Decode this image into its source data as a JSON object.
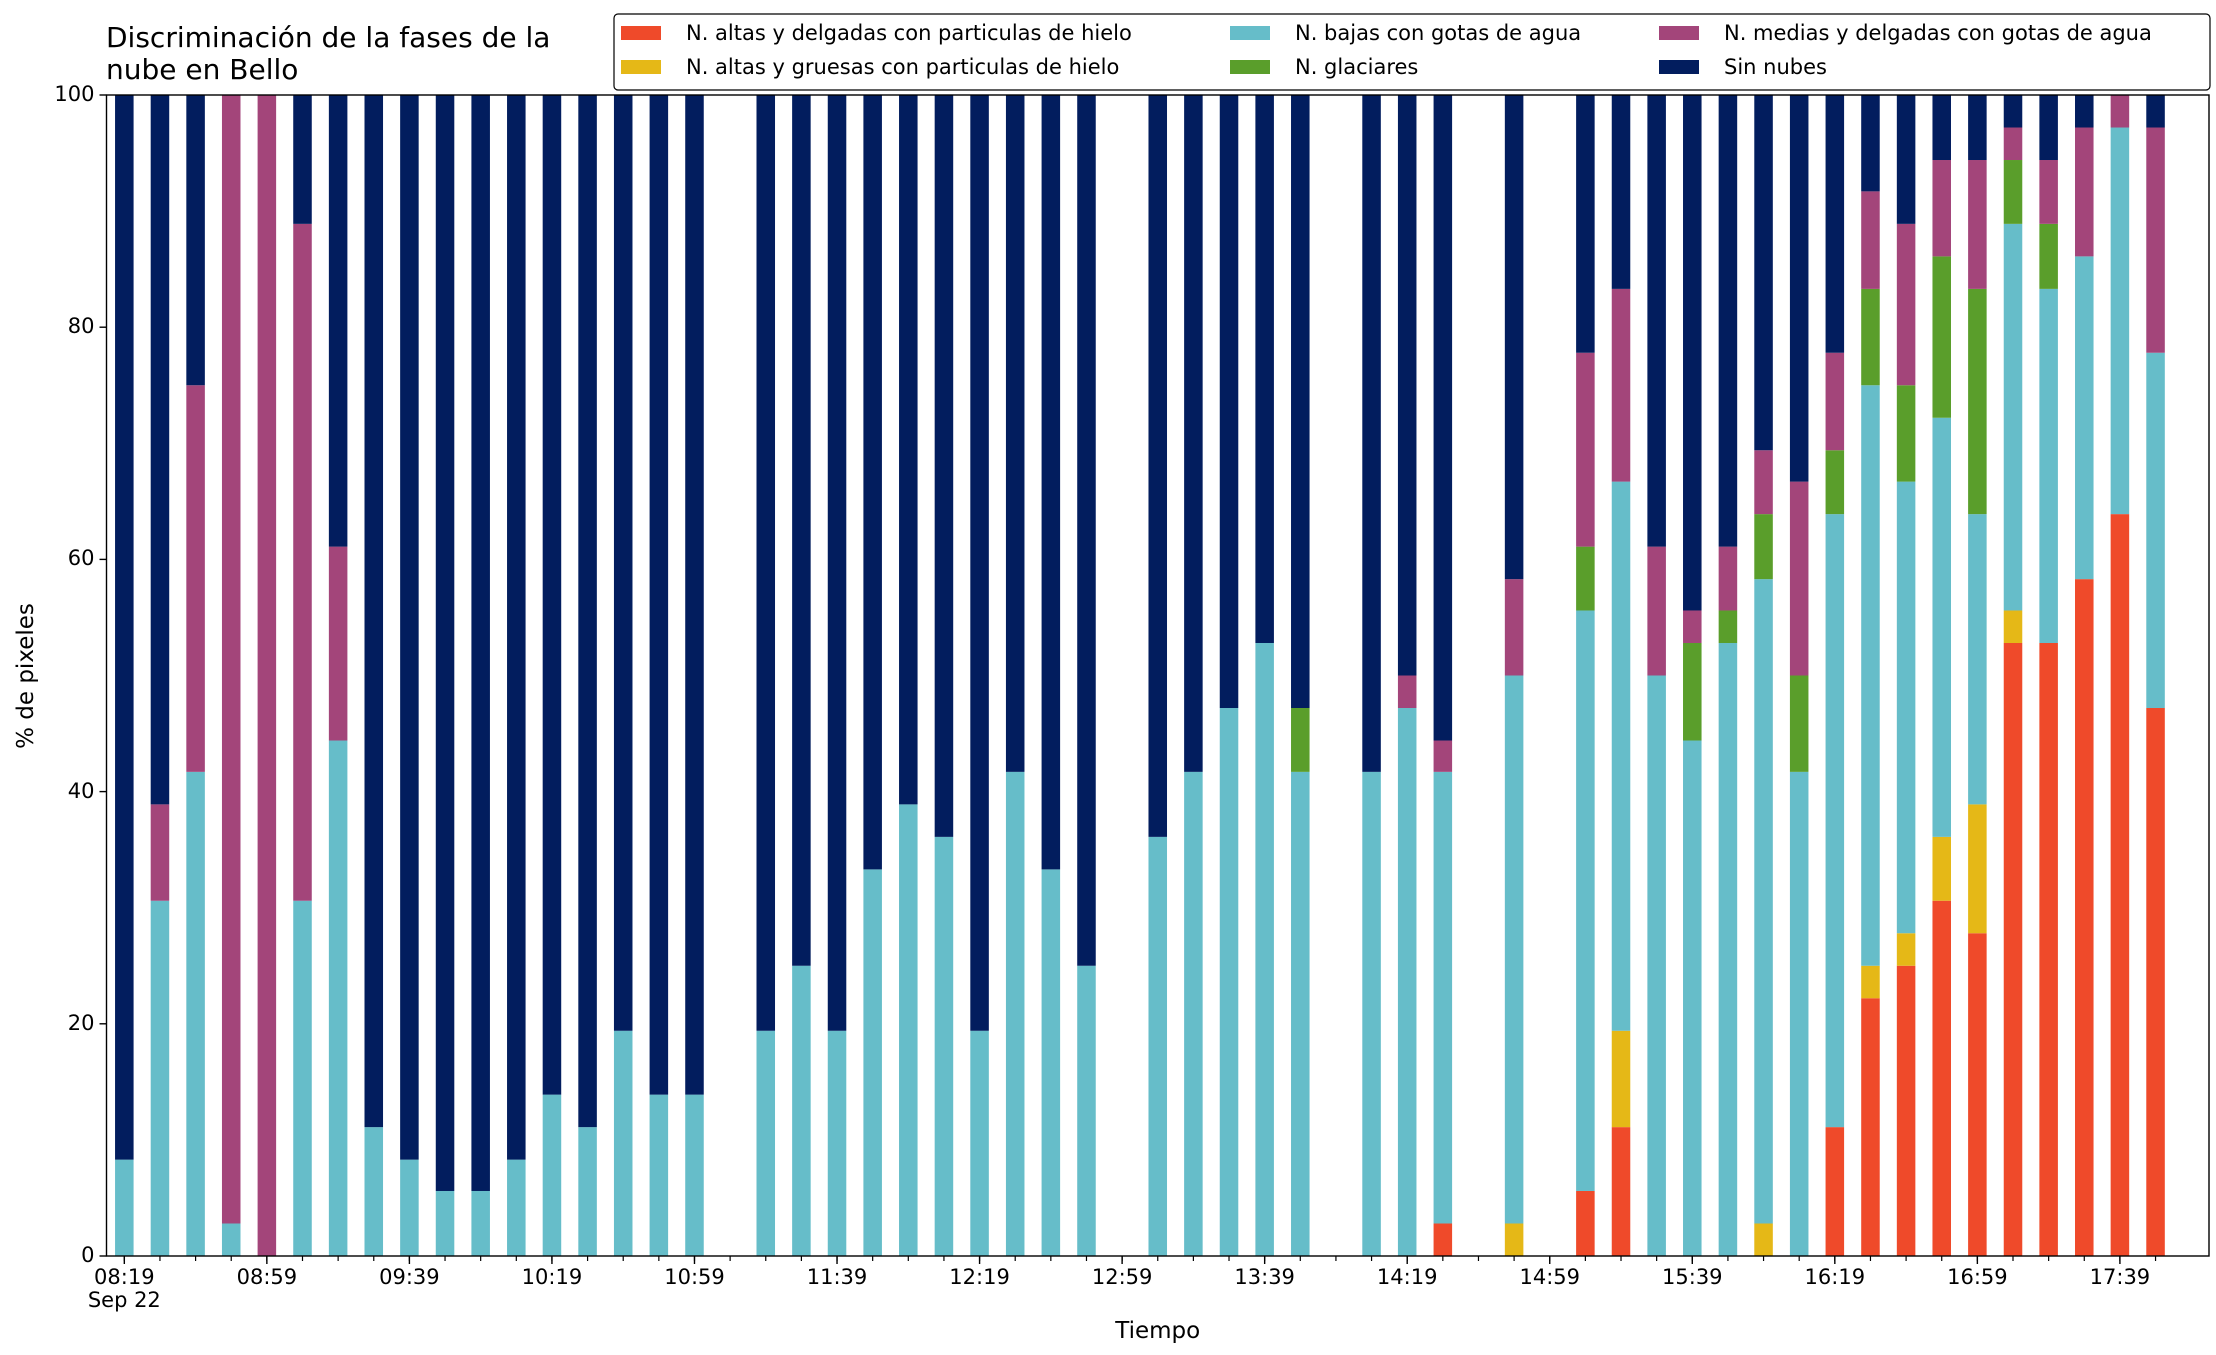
{
  "chart_data": {
    "type": "stacked_bar",
    "title": "Discriminación de la fases de la\nnube en Bello",
    "xlabel": "Tiempo",
    "ylabel": "% de pixeles",
    "x": [
      "08:19",
      "08:29",
      "08:39",
      "08:49",
      "08:59",
      "09:09",
      "09:19",
      "09:29",
      "09:39",
      "09:49",
      "09:59",
      "10:09",
      "10:19",
      "10:29",
      "10:39",
      "10:49",
      "10:59",
      "11:09",
      "11:19",
      "11:29",
      "11:39",
      "11:49",
      "11:59",
      "12:09",
      "12:19",
      "12:29",
      "12:39",
      "12:49",
      "12:59",
      "13:09",
      "13:19",
      "13:29",
      "13:39",
      "13:49",
      "13:59",
      "14:09",
      "14:19",
      "14:29",
      "14:39",
      "14:49",
      "14:59",
      "15:09",
      "15:19",
      "15:29",
      "15:39",
      "15:49",
      "15:59",
      "16:09",
      "16:19",
      "16:29",
      "16:39",
      "16:49",
      "16:59",
      "17:09",
      "17:19",
      "17:29",
      "17:39",
      "17:49"
    ],
    "xlim": [
      "08:14",
      "18:04"
    ],
    "xticks": [
      {
        "value": "08:19",
        "label": "08:19\nSep 22"
      },
      "08:59",
      "09:39",
      "10:19",
      "10:59",
      "11:39",
      "12:19",
      "12:59",
      "13:39",
      "14:19",
      "14:59",
      "15:39",
      "16:19",
      "16:59",
      "17:39"
    ],
    "ylim": [
      0,
      100
    ],
    "yticks": [
      0,
      20,
      40,
      60,
      80,
      100
    ],
    "legend": "top right",
    "series": [
      {
        "name": "N. altas y delgadas con particulas de hielo",
        "color": "#ef4a2a",
        "values": [
          0,
          0,
          0,
          0,
          0,
          0,
          0,
          0,
          0,
          0,
          0,
          0,
          0,
          0,
          0,
          0,
          0,
          null,
          0,
          0,
          0,
          0,
          0,
          0,
          0,
          0,
          0,
          0,
          null,
          0,
          0,
          0,
          0,
          0,
          null,
          0,
          0,
          2.8,
          null,
          0,
          null,
          5.6,
          11.1,
          0,
          0,
          0,
          0,
          0,
          11.1,
          22.2,
          25,
          30.6,
          27.8,
          52.8,
          52.8,
          58.3,
          63.9,
          47.2
        ]
      },
      {
        "name": "N. altas y gruesas con particulas de hielo",
        "color": "#e5b817",
        "values": [
          0,
          0,
          0,
          0,
          0,
          0,
          0,
          0,
          0,
          0,
          0,
          0,
          0,
          0,
          0,
          0,
          0,
          null,
          0,
          0,
          0,
          0,
          0,
          0,
          0,
          0,
          0,
          0,
          null,
          0,
          0,
          0,
          0,
          0,
          null,
          0,
          0,
          0,
          null,
          2.8,
          null,
          0,
          8.3,
          0,
          0,
          0,
          2.8,
          0,
          0,
          2.8,
          2.8,
          5.5,
          11.1,
          2.8,
          0,
          0,
          0,
          0
        ]
      },
      {
        "name": "N. bajas con gotas de agua",
        "color": "#66bdc9",
        "values": [
          8.3,
          30.6,
          41.7,
          2.8,
          0,
          30.6,
          44.4,
          11.1,
          8.3,
          5.6,
          5.6,
          8.3,
          13.9,
          11.1,
          19.4,
          13.9,
          13.9,
          null,
          19.4,
          25,
          19.4,
          33.3,
          38.9,
          36.1,
          19.4,
          41.7,
          33.3,
          25,
          null,
          36.1,
          41.7,
          47.2,
          52.8,
          41.7,
          null,
          41.7,
          47.2,
          38.9,
          null,
          47.2,
          null,
          50,
          47.3,
          50,
          44.4,
          52.8,
          55.5,
          41.7,
          52.8,
          50,
          38.9,
          36.1,
          25,
          33.3,
          30.5,
          27.8,
          33.3,
          30.6
        ]
      },
      {
        "name": "N. glaciares",
        "color": "#5a9e2b",
        "values": [
          0,
          0,
          0,
          0,
          0,
          0,
          0,
          0,
          0,
          0,
          0,
          0,
          0,
          0,
          0,
          0,
          0,
          null,
          0,
          0,
          0,
          0,
          0,
          0,
          0,
          0,
          0,
          0,
          null,
          0,
          0,
          0,
          0,
          5.5,
          null,
          0,
          0,
          0,
          null,
          0,
          null,
          5.5,
          0,
          0,
          8.4,
          2.8,
          5.6,
          8.3,
          5.5,
          8.3,
          8.3,
          13.9,
          19.4,
          5.5,
          5.6,
          0,
          0,
          0
        ]
      },
      {
        "name": "N. medias y delgadas con gotas de agua",
        "color": "#a3457a",
        "values": [
          0,
          8.3,
          33.3,
          97.2,
          100,
          58.3,
          16.7,
          0,
          0,
          0,
          0,
          0,
          0,
          0,
          0,
          0,
          0,
          null,
          0,
          0,
          0,
          0,
          0,
          0,
          0,
          0,
          0,
          0,
          null,
          0,
          0,
          0,
          0,
          0,
          null,
          0,
          2.8,
          2.7,
          null,
          8.3,
          null,
          16.7,
          16.6,
          11.1,
          2.8,
          5.5,
          5.5,
          16.7,
          8.4,
          8.4,
          13.9,
          8.3,
          11.1,
          2.8,
          5.5,
          11.1,
          2.8,
          19.4
        ]
      },
      {
        "name": "Sin nubes",
        "color": "#021d5e",
        "values": [
          91.7,
          61.1,
          25,
          0,
          0,
          11.1,
          38.9,
          88.9,
          91.7,
          94.4,
          94.4,
          91.7,
          86.1,
          88.9,
          80.6,
          86.1,
          86.1,
          null,
          80.6,
          75,
          80.6,
          66.7,
          61.1,
          63.9,
          80.6,
          58.3,
          66.7,
          75,
          null,
          63.9,
          58.3,
          52.8,
          47.2,
          52.8,
          null,
          58.3,
          50,
          55.6,
          null,
          41.7,
          null,
          22.2,
          16.7,
          38.9,
          44.4,
          38.9,
          30.6,
          33.3,
          22.2,
          8.3,
          11.1,
          5.6,
          5.6,
          2.8,
          5.6,
          2.8,
          0,
          2.8
        ]
      }
    ]
  }
}
